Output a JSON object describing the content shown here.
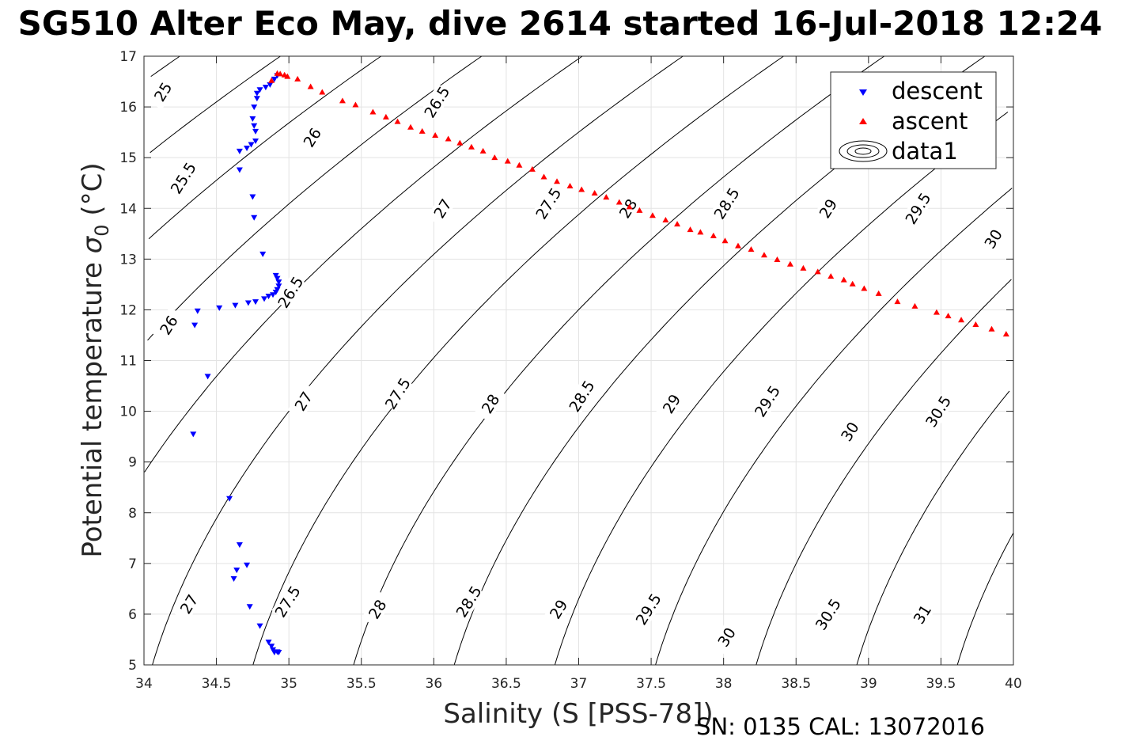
{
  "title": "SG510 Alter Eco May, dive 2614 started 16-Jul-2018 12:24",
  "footer": "SN: 0135  CAL: 13072016",
  "chart_data": {
    "type": "scatter",
    "xlabel": "Salinity (S [PSS-78])",
    "ylabel_main": "Potential temperature ",
    "ylabel_symbol": "σ",
    "ylabel_subscript": "0",
    "ylabel_unit": " (°C)",
    "xlim": [
      34,
      40
    ],
    "ylim": [
      5,
      17
    ],
    "xticks": [
      "34",
      "34.5",
      "35",
      "35.5",
      "36",
      "36.5",
      "37",
      "37.5",
      "38",
      "38.5",
      "39",
      "39.5",
      "40"
    ],
    "yticks": [
      "5",
      "6",
      "7",
      "8",
      "9",
      "10",
      "11",
      "12",
      "13",
      "14",
      "15",
      "16",
      "17"
    ],
    "grid": true,
    "legend_position": "top-right",
    "legend": [
      "descent",
      "ascent",
      "data1"
    ],
    "colors": {
      "descent": "#0000ff",
      "ascent": "#ff0000",
      "contour": "#000000",
      "grid": "#e3e3e3"
    },
    "series": [
      {
        "name": "descent",
        "marker": "triangle-down",
        "points": [
          [
            34.93,
            5.25
          ],
          [
            34.9,
            5.25
          ],
          [
            34.92,
            5.26
          ],
          [
            34.89,
            5.3
          ],
          [
            34.88,
            5.37
          ],
          [
            34.86,
            5.45
          ],
          [
            34.8,
            5.77
          ],
          [
            34.73,
            6.15
          ],
          [
            34.71,
            6.97
          ],
          [
            34.64,
            6.87
          ],
          [
            34.62,
            6.7
          ],
          [
            34.66,
            7.37
          ],
          [
            34.59,
            8.28
          ],
          [
            34.34,
            9.55
          ],
          [
            34.44,
            10.69
          ],
          [
            34.35,
            11.7
          ],
          [
            34.37,
            11.98
          ],
          [
            34.52,
            12.04
          ],
          [
            34.63,
            12.09
          ],
          [
            34.72,
            12.14
          ],
          [
            34.77,
            12.16
          ],
          [
            34.83,
            12.22
          ],
          [
            34.86,
            12.27
          ],
          [
            34.89,
            12.3
          ],
          [
            34.91,
            12.35
          ],
          [
            34.92,
            12.4
          ],
          [
            34.93,
            12.47
          ],
          [
            34.93,
            12.55
          ],
          [
            34.92,
            12.62
          ],
          [
            34.91,
            12.68
          ],
          [
            34.82,
            13.1
          ],
          [
            34.76,
            13.82
          ],
          [
            34.75,
            14.23
          ],
          [
            34.66,
            14.76
          ],
          [
            34.66,
            15.13
          ],
          [
            34.71,
            15.19
          ],
          [
            34.74,
            15.26
          ],
          [
            34.77,
            15.33
          ],
          [
            34.77,
            15.52
          ],
          [
            34.76,
            15.63
          ],
          [
            34.75,
            15.77
          ],
          [
            34.76,
            16.0
          ],
          [
            34.78,
            16.17
          ],
          [
            34.78,
            16.27
          ],
          [
            34.8,
            16.34
          ],
          [
            34.84,
            16.39
          ],
          [
            34.87,
            16.44
          ],
          [
            34.9,
            16.55
          ],
          [
            34.92,
            16.62
          ]
        ]
      },
      {
        "name": "ascent",
        "marker": "triangle-up",
        "points": [
          [
            34.88,
            16.52
          ],
          [
            34.92,
            16.66
          ],
          [
            34.94,
            16.65
          ],
          [
            34.97,
            16.63
          ],
          [
            34.99,
            16.6
          ],
          [
            35.06,
            16.55
          ],
          [
            35.15,
            16.4
          ],
          [
            35.23,
            16.29
          ],
          [
            35.37,
            16.12
          ],
          [
            35.46,
            16.04
          ],
          [
            35.58,
            15.9
          ],
          [
            35.67,
            15.8
          ],
          [
            35.75,
            15.71
          ],
          [
            35.84,
            15.6
          ],
          [
            35.92,
            15.52
          ],
          [
            36.01,
            15.44
          ],
          [
            36.1,
            15.37
          ],
          [
            36.18,
            15.29
          ],
          [
            36.26,
            15.21
          ],
          [
            36.34,
            15.13
          ],
          [
            36.42,
            15.0
          ],
          [
            36.51,
            14.93
          ],
          [
            36.59,
            14.85
          ],
          [
            36.68,
            14.77
          ],
          [
            36.76,
            14.62
          ],
          [
            36.85,
            14.53
          ],
          [
            36.94,
            14.44
          ],
          [
            37.02,
            14.37
          ],
          [
            37.11,
            14.3
          ],
          [
            37.19,
            14.22
          ],
          [
            37.28,
            14.12
          ],
          [
            37.35,
            14.03
          ],
          [
            37.42,
            13.96
          ],
          [
            37.51,
            13.86
          ],
          [
            37.6,
            13.77
          ],
          [
            37.68,
            13.69
          ],
          [
            37.77,
            13.58
          ],
          [
            37.84,
            13.53
          ],
          [
            37.93,
            13.46
          ],
          [
            38.01,
            13.36
          ],
          [
            38.1,
            13.26
          ],
          [
            38.19,
            13.19
          ],
          [
            38.28,
            13.08
          ],
          [
            38.37,
            12.99
          ],
          [
            38.46,
            12.9
          ],
          [
            38.55,
            12.82
          ],
          [
            38.65,
            12.75
          ],
          [
            38.74,
            12.66
          ],
          [
            38.83,
            12.59
          ],
          [
            38.89,
            12.51
          ],
          [
            38.97,
            12.42
          ],
          [
            39.07,
            12.32
          ],
          [
            39.2,
            12.16
          ],
          [
            39.32,
            12.07
          ],
          [
            39.47,
            11.95
          ],
          [
            39.55,
            11.88
          ],
          [
            39.64,
            11.8
          ],
          [
            39.74,
            11.71
          ],
          [
            39.85,
            11.62
          ],
          [
            39.95,
            11.52
          ]
        ]
      }
    ],
    "contour_labels": [
      {
        "text": "25",
        "x": 34.13,
        "y": 16.3
      },
      {
        "text": "25.5",
        "x": 34.27,
        "y": 14.6
      },
      {
        "text": "26",
        "x": 34.17,
        "y": 11.7
      },
      {
        "text": "26",
        "x": 35.16,
        "y": 15.4
      },
      {
        "text": "26.5",
        "x": 36.02,
        "y": 16.1
      },
      {
        "text": "26.5",
        "x": 35.01,
        "y": 12.35
      },
      {
        "text": "27",
        "x": 36.06,
        "y": 14.0
      },
      {
        "text": "27",
        "x": 35.1,
        "y": 10.2
      },
      {
        "text": "27",
        "x": 34.31,
        "y": 6.2
      },
      {
        "text": "27.5",
        "x": 36.79,
        "y": 14.1
      },
      {
        "text": "27.5",
        "x": 35.75,
        "y": 10.35
      },
      {
        "text": "27.5",
        "x": 34.99,
        "y": 6.25
      },
      {
        "text": "28",
        "x": 37.34,
        "y": 14.0
      },
      {
        "text": "28",
        "x": 36.39,
        "y": 10.15
      },
      {
        "text": "28",
        "x": 35.61,
        "y": 6.1
      },
      {
        "text": "28.5",
        "x": 38.02,
        "y": 14.1
      },
      {
        "text": "28.5",
        "x": 37.02,
        "y": 10.3
      },
      {
        "text": "28.5",
        "x": 36.24,
        "y": 6.25
      },
      {
        "text": "29",
        "x": 38.72,
        "y": 14.0
      },
      {
        "text": "29",
        "x": 37.64,
        "y": 10.15
      },
      {
        "text": "29",
        "x": 36.86,
        "y": 6.1
      },
      {
        "text": "29.5",
        "x": 39.34,
        "y": 14.0
      },
      {
        "text": "29.5",
        "x": 38.3,
        "y": 10.2
      },
      {
        "text": "29.5",
        "x": 37.48,
        "y": 6.1
      },
      {
        "text": "30",
        "x": 39.86,
        "y": 13.4
      },
      {
        "text": "30",
        "x": 38.87,
        "y": 9.6
      },
      {
        "text": "30",
        "x": 38.02,
        "y": 5.55
      },
      {
        "text": "30.5",
        "x": 39.48,
        "y": 10.0
      },
      {
        "text": "30.5",
        "x": 38.72,
        "y": 6.0
      },
      {
        "text": "31",
        "x": 39.37,
        "y": 6.0
      }
    ]
  }
}
